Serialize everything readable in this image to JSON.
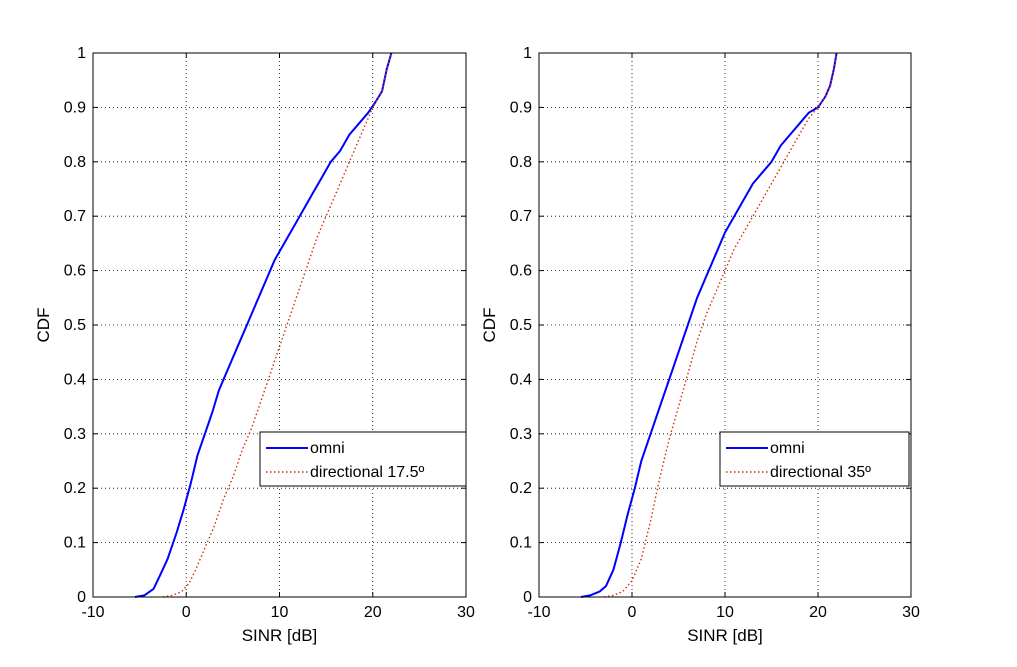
{
  "chart_data": [
    {
      "type": "line",
      "xlabel": "SINR [dB]",
      "ylabel": "CDF",
      "xlim": [
        -10,
        30
      ],
      "ylim": [
        0,
        1
      ],
      "xticks": [
        -10,
        0,
        10,
        20,
        30
      ],
      "yticks": [
        0,
        0.1,
        0.2,
        0.3,
        0.4,
        0.5,
        0.6,
        0.7,
        0.8,
        0.9,
        1
      ],
      "grid": true,
      "legend_position": "bottom-right",
      "series": [
        {
          "name": "omni",
          "color": "#0000ff",
          "style": "solid",
          "x": [
            -5.5,
            -4.5,
            -3.5,
            -2.8,
            -2,
            -1,
            -0.3,
            0.5,
            1.2,
            2,
            2.8,
            3.5,
            4.5,
            5.5,
            6.5,
            7.5,
            8.5,
            9.5,
            10.5,
            11.5,
            12.5,
            13.5,
            14.5,
            15.5,
            16.5,
            17.5,
            18.5,
            19.5,
            20.3,
            21,
            21.5,
            22
          ],
          "y": [
            0,
            0.003,
            0.015,
            0.04,
            0.07,
            0.12,
            0.16,
            0.21,
            0.26,
            0.3,
            0.34,
            0.38,
            0.42,
            0.46,
            0.5,
            0.54,
            0.58,
            0.62,
            0.65,
            0.68,
            0.71,
            0.74,
            0.77,
            0.8,
            0.82,
            0.85,
            0.87,
            0.89,
            0.91,
            0.93,
            0.97,
            1.0
          ]
        },
        {
          "name": "directional 17.5º",
          "color": "#d03000",
          "style": "dotted",
          "x": [
            -2.5,
            -1.5,
            -0.5,
            0.3,
            1,
            2,
            3,
            4,
            5,
            6,
            7,
            8,
            9,
            10,
            11,
            12,
            13,
            14,
            15,
            16,
            17,
            18,
            19,
            20,
            21,
            21.5,
            22
          ],
          "y": [
            0,
            0.003,
            0.01,
            0.025,
            0.05,
            0.09,
            0.13,
            0.18,
            0.22,
            0.27,
            0.31,
            0.36,
            0.41,
            0.46,
            0.51,
            0.56,
            0.61,
            0.66,
            0.7,
            0.74,
            0.78,
            0.82,
            0.86,
            0.9,
            0.93,
            0.97,
            1.0
          ]
        }
      ]
    },
    {
      "type": "line",
      "xlabel": "SINR [dB]",
      "ylabel": "CDF",
      "xlim": [
        -10,
        30
      ],
      "ylim": [
        0,
        1
      ],
      "xticks": [
        -10,
        0,
        10,
        20,
        30
      ],
      "yticks": [
        0,
        0.1,
        0.2,
        0.3,
        0.4,
        0.5,
        0.6,
        0.7,
        0.8,
        0.9,
        1
      ],
      "grid": true,
      "legend_position": "bottom-right",
      "series": [
        {
          "name": "omni",
          "color": "#0000ff",
          "style": "solid",
          "x": [
            -5.5,
            -4.5,
            -3.5,
            -2.8,
            -2,
            -1.2,
            -0.5,
            0.3,
            1,
            2,
            3,
            4,
            5,
            6,
            7,
            8,
            9,
            10,
            11,
            12,
            13,
            14,
            15,
            16,
            17,
            18,
            19,
            20,
            20.8,
            21.3,
            21.7,
            22
          ],
          "y": [
            0,
            0.003,
            0.01,
            0.02,
            0.05,
            0.1,
            0.15,
            0.2,
            0.25,
            0.3,
            0.35,
            0.4,
            0.45,
            0.5,
            0.55,
            0.59,
            0.63,
            0.67,
            0.7,
            0.73,
            0.76,
            0.78,
            0.8,
            0.83,
            0.85,
            0.87,
            0.89,
            0.9,
            0.92,
            0.94,
            0.97,
            1.0
          ]
        },
        {
          "name": "directional 35º",
          "color": "#d03000",
          "style": "dotted",
          "x": [
            -3,
            -2,
            -1,
            0,
            1,
            2,
            3,
            4,
            5,
            6,
            7,
            8,
            9,
            10,
            11,
            12,
            13,
            14,
            15,
            16,
            17,
            18,
            19,
            20,
            20.8,
            21.3,
            21.7,
            22
          ],
          "y": [
            0,
            0.003,
            0.01,
            0.03,
            0.07,
            0.14,
            0.22,
            0.29,
            0.35,
            0.41,
            0.47,
            0.52,
            0.56,
            0.6,
            0.64,
            0.67,
            0.7,
            0.73,
            0.76,
            0.79,
            0.82,
            0.85,
            0.88,
            0.9,
            0.92,
            0.94,
            0.97,
            1.0
          ]
        }
      ]
    }
  ]
}
